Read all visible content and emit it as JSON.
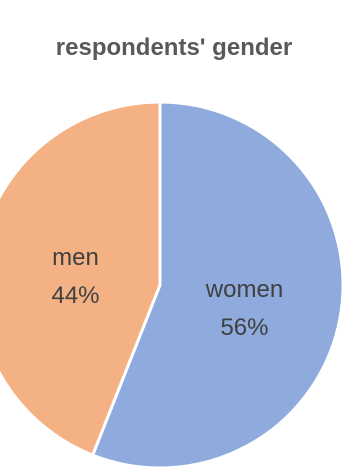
{
  "chart_data": {
    "type": "pie",
    "title": "respondents' gender",
    "categories": [
      "women",
      "men"
    ],
    "values": [
      56,
      44
    ],
    "labels": [
      "56%",
      "44%"
    ],
    "colors": [
      "#8faadc",
      "#f4b183"
    ],
    "start_angle_deg": 0,
    "legend": "none"
  }
}
